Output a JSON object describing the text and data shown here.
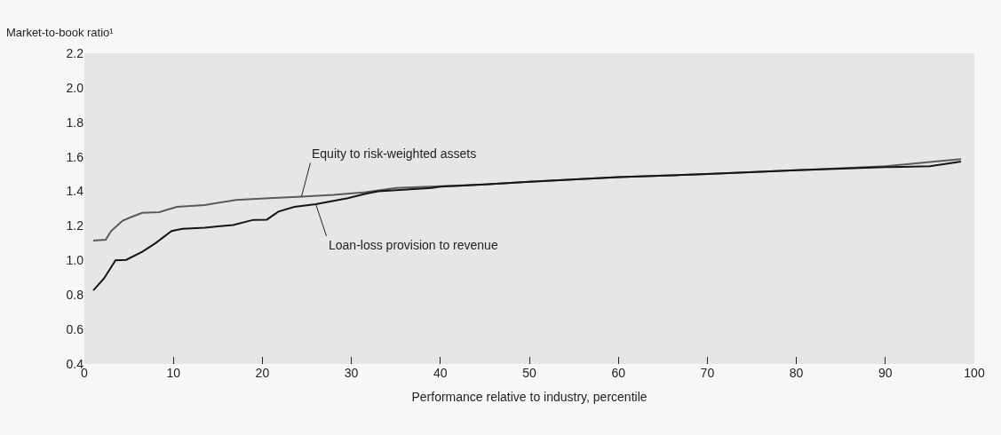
{
  "chart_data": {
    "type": "line",
    "xlabel": "Performance relative to industry, percentile",
    "ylabel": "Market-to-book ratio¹",
    "xlim": [
      0,
      100
    ],
    "xticks": [
      0,
      10,
      20,
      30,
      40,
      50,
      60,
      70,
      80,
      90,
      100
    ],
    "ylim": [
      0.4,
      2.2
    ],
    "yticks": [
      0.4,
      0.6,
      0.8,
      {
        "value": 1,
        "label": "1.0"
      },
      1.2,
      1.4,
      1.6,
      1.8,
      {
        "value": 2,
        "label": "2.0"
      },
      2.2
    ],
    "marker": "none",
    "line_style": "solid",
    "series": [
      {
        "color": "#5a5a5a",
        "x": [
          1,
          2.4,
          3,
          4.3,
          5.2,
          6.5,
          8.4,
          10.4,
          13.5,
          17,
          20.7,
          24.4,
          28,
          31.6,
          35,
          40,
          45,
          50,
          60,
          70,
          80,
          90,
          95,
          98.5
        ],
        "values": [
          1.115,
          1.12,
          1.17,
          1.23,
          1.25,
          1.275,
          1.28,
          1.31,
          1.32,
          1.35,
          1.36,
          1.37,
          1.38,
          1.395,
          1.42,
          1.43,
          1.44,
          1.455,
          1.482,
          1.5,
          1.522,
          1.545,
          1.57,
          1.587
        ]
      },
      {
        "color": "#151515",
        "x": [
          1,
          2.2,
          3.5,
          4.7,
          6.5,
          8,
          9.8,
          11,
          13.5,
          16.7,
          19,
          20.5,
          21.8,
          23.6,
          26,
          29.6,
          31.5,
          33,
          39,
          40,
          45,
          50,
          60,
          70,
          80,
          90,
          95,
          98.5
        ],
        "values": [
          0.826,
          0.895,
          1.0,
          1.003,
          1.05,
          1.1,
          1.17,
          1.183,
          1.19,
          1.205,
          1.235,
          1.236,
          1.283,
          1.31,
          1.326,
          1.36,
          1.385,
          1.4,
          1.42,
          1.427,
          1.44,
          1.455,
          1.482,
          1.5,
          1.522,
          1.54,
          1.545,
          1.573
        ]
      }
    ],
    "annotations": [
      {
        "text": "Equity to risk-weighted assets",
        "x": 24.4,
        "y": 1.37
      },
      {
        "text": "Loan-loss provision to revenue",
        "x": 26,
        "y": 1.326
      }
    ]
  }
}
